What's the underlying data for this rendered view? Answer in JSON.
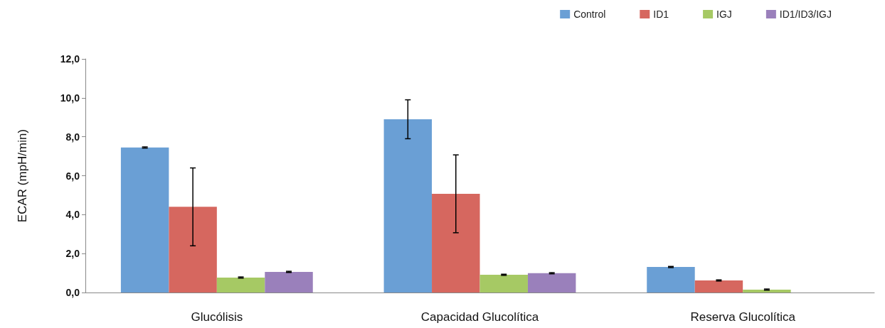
{
  "chart_data": {
    "type": "bar",
    "ylabel": "ECAR (mpH/min)",
    "categories": [
      "Glucólisis",
      "Capacidad Glucolítica",
      "Reserva Glucolítica"
    ],
    "series": [
      {
        "name": "Control",
        "color": "#6a9fd5",
        "values": [
          7.45,
          8.9,
          1.31
        ],
        "errors": [
          0.03,
          1.0,
          0.03
        ]
      },
      {
        "name": "ID1",
        "color": "#d6675f",
        "values": [
          4.4,
          5.07,
          0.62
        ],
        "errors": [
          2.0,
          2.0,
          0.03
        ]
      },
      {
        "name": "IGJ",
        "color": "#a6c964",
        "values": [
          0.77,
          0.91,
          0.15
        ],
        "errors": [
          0.03,
          0.03,
          0.03
        ]
      },
      {
        "name": "ID1/ID3/IGJ",
        "color": "#9a80bb",
        "values": [
          1.06,
          0.99,
          null
        ],
        "errors": [
          0.03,
          0.03,
          null
        ]
      }
    ],
    "ylim": [
      0,
      12
    ],
    "yticks": [
      {
        "value": 0,
        "label": "0,0"
      },
      {
        "value": 2,
        "label": "2,0"
      },
      {
        "value": 4,
        "label": "4,0"
      },
      {
        "value": 6,
        "label": "6,0"
      },
      {
        "value": 8,
        "label": "8,0"
      },
      {
        "value": 10,
        "label": "10,0"
      },
      {
        "value": 12,
        "label": "12,0"
      }
    ],
    "grid": false,
    "legend": "top right"
  }
}
